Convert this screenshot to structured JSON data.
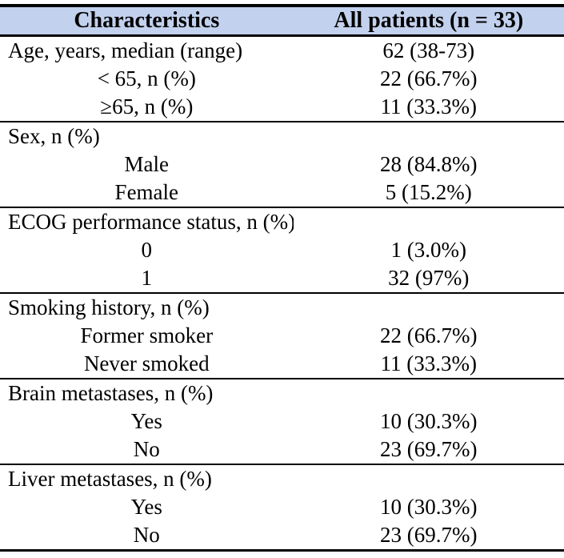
{
  "colors": {
    "header_bg": "#c2d1ed",
    "border": "#000000",
    "text": "#000000"
  },
  "table": {
    "header": {
      "col1": "Characteristics",
      "col2": "All patients (n = 33)"
    },
    "sections": [
      {
        "rows": [
          {
            "label": "Age, years, median (range)",
            "value": "62 (38-73)",
            "indent": false
          },
          {
            "label": "< 65, n (%)",
            "value": "22 (66.7%)",
            "indent": true
          },
          {
            "label": "≥65, n (%)",
            "value": "11 (33.3%)",
            "indent": true
          }
        ]
      },
      {
        "rows": [
          {
            "label": "Sex, n (%)",
            "value": "",
            "indent": false
          },
          {
            "label": "Male",
            "value": "28 (84.8%)",
            "indent": true
          },
          {
            "label": "Female",
            "value": "5 (15.2%)",
            "indent": true
          }
        ]
      },
      {
        "rows": [
          {
            "label": "ECOG performance status, n (%)",
            "value": "",
            "indent": false
          },
          {
            "label": "0",
            "value": "1 (3.0%)",
            "indent": true
          },
          {
            "label": "1",
            "value": "32 (97%)",
            "indent": true
          }
        ]
      },
      {
        "rows": [
          {
            "label": "Smoking history, n (%)",
            "value": "",
            "indent": false
          },
          {
            "label": "Former smoker",
            "value": "22 (66.7%)",
            "indent": true
          },
          {
            "label": "Never smoked",
            "value": "11 (33.3%)",
            "indent": true
          }
        ]
      },
      {
        "rows": [
          {
            "label": "Brain metastases, n (%)",
            "value": "",
            "indent": false
          },
          {
            "label": "Yes",
            "value": "10 (30.3%)",
            "indent": true
          },
          {
            "label": "No",
            "value": "23 (69.7%)",
            "indent": true
          }
        ]
      },
      {
        "rows": [
          {
            "label": "Liver metastases, n (%)",
            "value": "",
            "indent": false
          },
          {
            "label": "Yes",
            "value": "10 (30.3%)",
            "indent": true
          },
          {
            "label": "No",
            "value": "23 (69.7%)",
            "indent": true
          }
        ]
      }
    ]
  }
}
